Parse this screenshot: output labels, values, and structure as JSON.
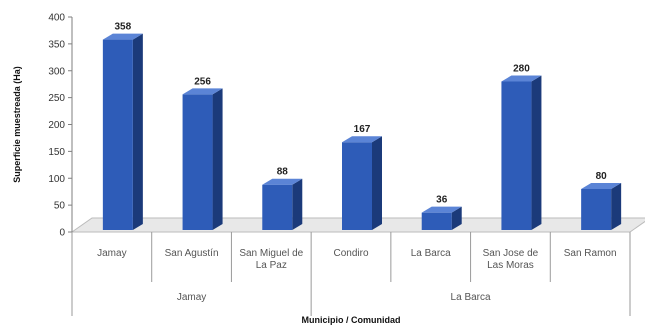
{
  "chart_data": {
    "type": "bar",
    "title": "",
    "xlabel": "Municipio / Comunidad",
    "ylabel": "Superficie muestreada (Ha)",
    "ylim": [
      0,
      400
    ],
    "yticks": [
      0,
      50,
      100,
      150,
      200,
      250,
      300,
      350,
      400
    ],
    "ytick_labels": [
      "0",
      "50",
      "100",
      "150",
      "200",
      "250",
      "300",
      "350",
      "400"
    ],
    "grid": false,
    "categories": [
      "Jamay",
      "San Agustín",
      "San Miguel de La Paz",
      "Condiro",
      "La Barca",
      "San Jose de Las Moras",
      "San Ramon"
    ],
    "category_lines": [
      [
        "Jamay"
      ],
      [
        "San Agustín"
      ],
      [
        "San Miguel de",
        "La Paz"
      ],
      [
        "Condiro"
      ],
      [
        "La Barca"
      ],
      [
        "San Jose de",
        "Las Moras"
      ],
      [
        "San Ramon"
      ]
    ],
    "values": [
      358,
      256,
      88,
      167,
      36,
      280,
      80
    ],
    "data_labels": [
      "358",
      "256",
      "88",
      "167",
      "36",
      "280",
      "80"
    ],
    "groups": [
      {
        "name": "Jamay",
        "start": 0,
        "end": 2
      },
      {
        "name": "La Barca",
        "start": 3,
        "end": 6
      }
    ],
    "colors": {
      "bar_front": "#2E5CB8",
      "bar_side": "#1B3A7A",
      "bar_top": "#5B84D6",
      "floor": "#E8E8E8",
      "axis": "#7F7F7F"
    }
  }
}
